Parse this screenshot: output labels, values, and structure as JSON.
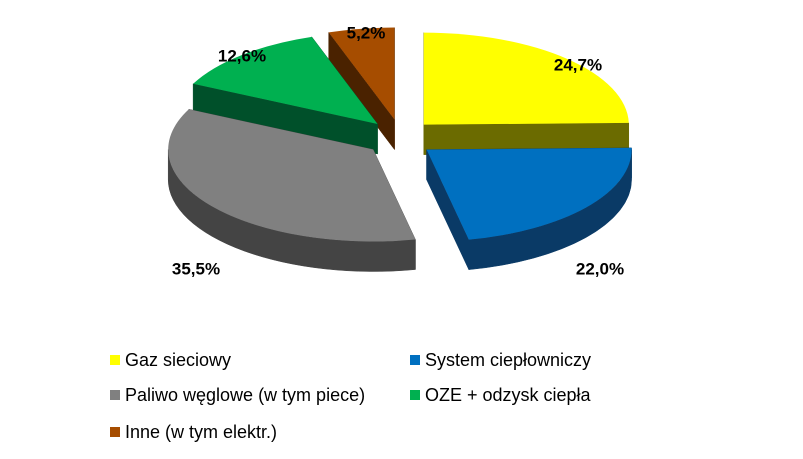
{
  "chart_data": {
    "type": "pie",
    "categories": [
      "Gaz sieciowy",
      "System ciepłowniczy",
      "Paliwo węglowe (w tym piece)",
      "OZE + odzysk ciepła",
      "Inne (w tym elektr.)"
    ],
    "values": [
      24.7,
      22.0,
      35.5,
      12.6,
      5.2
    ],
    "value_labels": [
      "24,7%",
      "22,0%",
      "35,5%",
      "12,6%",
      "5,2%"
    ],
    "colors": [
      "#FFFF00",
      "#0070C0",
      "#808080",
      "#00B050",
      "#A64D00"
    ],
    "side_colors": [
      "#6B6B00",
      "#0A3A66",
      "#444444",
      "#00502A",
      "#4A2200"
    ],
    "title": "",
    "legend_placement": "bottom",
    "exploded": true,
    "three_d": true
  },
  "legend": {
    "items": [
      "Gaz sieciowy",
      "System ciepłowniczy",
      "Paliwo węglowe (w tym piece)",
      "OZE + odzysk ciepła",
      "Inne (w tym elektr.)"
    ]
  }
}
